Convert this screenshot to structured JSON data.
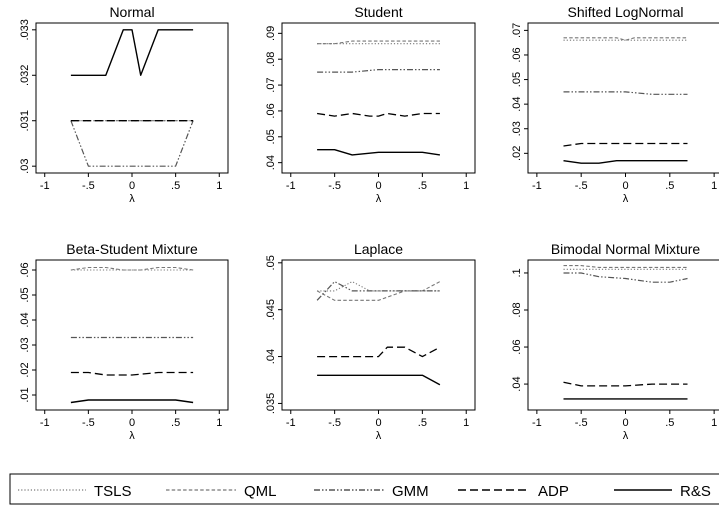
{
  "chart_data": [
    {
      "type": "line",
      "title": "Normal",
      "xlabel": "λ",
      "xlim": [
        -1.1,
        1.1
      ],
      "ylim": [
        0.02985,
        0.03315
      ],
      "xticks": [
        -1,
        -0.5,
        0,
        0.5,
        1
      ],
      "xtick_labels": [
        "-1",
        "-.5",
        "0",
        ".5",
        "1"
      ],
      "yticks": [
        0.03,
        0.031,
        0.032,
        0.033
      ],
      "ytick_labels": [
        ".03",
        ".031",
        ".032",
        ".033"
      ],
      "series": [
        {
          "name": "TSLS",
          "x": [
            -0.7,
            -0.3,
            -0.1,
            0,
            0.1,
            0.3,
            0.5,
            0.7
          ],
          "y": [
            0.031,
            0.031,
            0.031,
            0.031,
            0.031,
            0.031,
            0.031,
            0.031
          ]
        },
        {
          "name": "QML",
          "x": [
            -0.7,
            -0.3,
            -0.1,
            0,
            0.1,
            0.3,
            0.5,
            0.7
          ],
          "y": [
            0.031,
            0.031,
            0.031,
            0.031,
            0.031,
            0.031,
            0.031,
            0.031
          ]
        },
        {
          "name": "GMM",
          "x": [
            -0.7,
            -0.5,
            -0.3,
            0,
            0.3,
            0.5,
            0.7
          ],
          "y": [
            0.031,
            0.03,
            0.03,
            0.03,
            0.03,
            0.03,
            0.031
          ]
        },
        {
          "name": "ADP",
          "x": [
            -0.7,
            -0.3,
            -0.1,
            0,
            0.1,
            0.3,
            0.5,
            0.7
          ],
          "y": [
            0.031,
            0.031,
            0.031,
            0.031,
            0.031,
            0.031,
            0.031,
            0.031
          ]
        },
        {
          "name": "R&S",
          "x": [
            -0.7,
            -0.3,
            -0.1,
            0,
            0.1,
            0.3,
            0.5,
            0.7
          ],
          "y": [
            0.032,
            0.032,
            0.033,
            0.033,
            0.032,
            0.033,
            0.033,
            0.033
          ]
        }
      ]
    },
    {
      "type": "line",
      "title": "Student",
      "xlabel": "λ",
      "xlim": [
        -1.1,
        1.1
      ],
      "ylim": [
        0.036,
        0.094
      ],
      "xticks": [
        -1,
        -0.5,
        0,
        0.5,
        1
      ],
      "xtick_labels": [
        "-1",
        "-.5",
        "0",
        ".5",
        "1"
      ],
      "yticks": [
        0.04,
        0.05,
        0.06,
        0.07,
        0.08,
        0.09
      ],
      "ytick_labels": [
        ".04",
        ".05",
        ".06",
        ".07",
        ".08",
        ".09"
      ],
      "series": [
        {
          "name": "TSLS",
          "x": [
            -0.7,
            -0.5,
            -0.3,
            0,
            0.3,
            0.5,
            0.7
          ],
          "y": [
            0.086,
            0.086,
            0.086,
            0.086,
            0.086,
            0.086,
            0.086
          ]
        },
        {
          "name": "QML",
          "x": [
            -0.7,
            -0.5,
            -0.3,
            0,
            0.3,
            0.5,
            0.7
          ],
          "y": [
            0.086,
            0.086,
            0.087,
            0.087,
            0.087,
            0.087,
            0.087
          ]
        },
        {
          "name": "GMM",
          "x": [
            -0.7,
            -0.5,
            -0.3,
            0,
            0.3,
            0.5,
            0.7
          ],
          "y": [
            0.075,
            0.075,
            0.075,
            0.076,
            0.076,
            0.076,
            0.076
          ]
        },
        {
          "name": "ADP",
          "x": [
            -0.7,
            -0.5,
            -0.3,
            -0.1,
            0,
            0.1,
            0.3,
            0.5,
            0.7
          ],
          "y": [
            0.059,
            0.058,
            0.059,
            0.058,
            0.058,
            0.059,
            0.058,
            0.059,
            0.059
          ]
        },
        {
          "name": "R&S",
          "x": [
            -0.7,
            -0.5,
            -0.3,
            0,
            0.3,
            0.5,
            0.7
          ],
          "y": [
            0.045,
            0.045,
            0.043,
            0.044,
            0.044,
            0.044,
            0.043
          ]
        }
      ]
    },
    {
      "type": "line",
      "title": "Shifted LogNormal",
      "xlabel": "λ",
      "xlim": [
        -1.1,
        1.1
      ],
      "ylim": [
        0.012,
        0.073
      ],
      "xticks": [
        -1,
        -0.5,
        0,
        0.5,
        1
      ],
      "xtick_labels": [
        "-1",
        "-.5",
        "0",
        ".5",
        "1"
      ],
      "yticks": [
        0.02,
        0.03,
        0.04,
        0.05,
        0.06,
        0.07
      ],
      "ytick_labels": [
        ".02",
        ".03",
        ".04",
        ".05",
        ".06",
        ".07"
      ],
      "series": [
        {
          "name": "TSLS",
          "x": [
            -0.7,
            -0.5,
            -0.3,
            0,
            0.3,
            0.5,
            0.7
          ],
          "y": [
            0.066,
            0.066,
            0.066,
            0.066,
            0.066,
            0.066,
            0.066
          ]
        },
        {
          "name": "QML",
          "x": [
            -0.7,
            -0.5,
            -0.3,
            -0.1,
            0,
            0.1,
            0.3,
            0.5,
            0.7
          ],
          "y": [
            0.067,
            0.067,
            0.067,
            0.067,
            0.066,
            0.067,
            0.067,
            0.067,
            0.067
          ]
        },
        {
          "name": "GMM",
          "x": [
            -0.7,
            -0.5,
            -0.3,
            0,
            0.3,
            0.5,
            0.7
          ],
          "y": [
            0.045,
            0.045,
            0.045,
            0.045,
            0.044,
            0.044,
            0.044
          ]
        },
        {
          "name": "ADP",
          "x": [
            -0.7,
            -0.5,
            -0.3,
            0,
            0.3,
            0.5,
            0.7
          ],
          "y": [
            0.023,
            0.024,
            0.024,
            0.024,
            0.024,
            0.024,
            0.024
          ]
        },
        {
          "name": "R&S",
          "x": [
            -0.7,
            -0.5,
            -0.3,
            -0.1,
            0,
            0.3,
            0.5,
            0.7
          ],
          "y": [
            0.017,
            0.016,
            0.016,
            0.017,
            0.017,
            0.017,
            0.017,
            0.017
          ]
        }
      ]
    },
    {
      "type": "line",
      "title": "Beta-Student Mixture",
      "xlabel": "λ",
      "xlim": [
        -1.1,
        1.1
      ],
      "ylim": [
        0.004,
        0.064
      ],
      "xticks": [
        -1,
        -0.5,
        0,
        0.5,
        1
      ],
      "xtick_labels": [
        "-1",
        "-.5",
        "0",
        ".5",
        "1"
      ],
      "yticks": [
        0.01,
        0.02,
        0.03,
        0.04,
        0.05,
        0.06
      ],
      "ytick_labels": [
        ".01",
        ".02",
        ".03",
        ".04",
        ".05",
        ".06"
      ],
      "series": [
        {
          "name": "TSLS",
          "x": [
            -0.7,
            -0.5,
            -0.3,
            0,
            0.3,
            0.5,
            0.7
          ],
          "y": [
            0.06,
            0.06,
            0.06,
            0.06,
            0.06,
            0.06,
            0.06
          ]
        },
        {
          "name": "QML",
          "x": [
            -0.7,
            -0.5,
            -0.3,
            -0.1,
            0,
            0.1,
            0.3,
            0.5,
            0.7
          ],
          "y": [
            0.06,
            0.061,
            0.061,
            0.06,
            0.06,
            0.06,
            0.061,
            0.061,
            0.06
          ]
        },
        {
          "name": "GMM",
          "x": [
            -0.7,
            -0.5,
            -0.3,
            0,
            0.3,
            0.5,
            0.7
          ],
          "y": [
            0.033,
            0.033,
            0.033,
            0.033,
            0.033,
            0.033,
            0.033
          ]
        },
        {
          "name": "ADP",
          "x": [
            -0.7,
            -0.5,
            -0.3,
            0,
            0.3,
            0.5,
            0.7
          ],
          "y": [
            0.019,
            0.019,
            0.018,
            0.018,
            0.019,
            0.019,
            0.019
          ]
        },
        {
          "name": "R&S",
          "x": [
            -0.7,
            -0.5,
            -0.3,
            0,
            0.3,
            0.5,
            0.7
          ],
          "y": [
            0.007,
            0.008,
            0.008,
            0.008,
            0.008,
            0.008,
            0.007
          ]
        }
      ]
    },
    {
      "type": "line",
      "title": "Laplace",
      "xlabel": "λ",
      "xlim": [
        -1.1,
        1.1
      ],
      "ylim": [
        0.0343,
        0.0503
      ],
      "xticks": [
        -1,
        -0.5,
        0,
        0.5,
        1
      ],
      "xtick_labels": [
        "-1",
        "-.5",
        "0",
        ".5",
        "1"
      ],
      "yticks": [
        0.035,
        0.04,
        0.045,
        0.05
      ],
      "ytick_labels": [
        ".035",
        ".04",
        ".045",
        ".05"
      ],
      "series": [
        {
          "name": "TSLS",
          "x": [
            -0.7,
            -0.5,
            -0.3,
            -0.1,
            0,
            0.3,
            0.5,
            0.7
          ],
          "y": [
            0.047,
            0.047,
            0.048,
            0.047,
            0.047,
            0.047,
            0.047,
            0.047
          ]
        },
        {
          "name": "QML",
          "x": [
            -0.7,
            -0.5,
            -0.3,
            0,
            0.3,
            0.5,
            0.7
          ],
          "y": [
            0.047,
            0.046,
            0.046,
            0.046,
            0.047,
            0.047,
            0.048
          ]
        },
        {
          "name": "GMM",
          "x": [
            -0.7,
            -0.5,
            -0.3,
            0,
            0.3,
            0.5,
            0.7
          ],
          "y": [
            0.046,
            0.048,
            0.047,
            0.047,
            0.047,
            0.047,
            0.047
          ]
        },
        {
          "name": "ADP",
          "x": [
            -0.7,
            -0.5,
            -0.3,
            0,
            0.1,
            0.3,
            0.5,
            0.7
          ],
          "y": [
            0.04,
            0.04,
            0.04,
            0.04,
            0.041,
            0.041,
            0.04,
            0.041
          ]
        },
        {
          "name": "R&S",
          "x": [
            -0.7,
            -0.5,
            -0.3,
            0,
            0.3,
            0.5,
            0.7
          ],
          "y": [
            0.038,
            0.038,
            0.038,
            0.038,
            0.038,
            0.038,
            0.037
          ]
        }
      ]
    },
    {
      "type": "line",
      "title": "Bimodal Normal Mixture",
      "xlabel": "λ",
      "xlim": [
        -1.1,
        1.1
      ],
      "ylim": [
        0.026,
        0.107
      ],
      "xticks": [
        -1,
        -0.5,
        0,
        0.5,
        1
      ],
      "xtick_labels": [
        "-1",
        "-.5",
        "0",
        ".5",
        "1"
      ],
      "yticks": [
        0.04,
        0.06,
        0.08,
        0.1
      ],
      "ytick_labels": [
        ".04",
        ".06",
        ".08",
        ".1"
      ],
      "series": [
        {
          "name": "TSLS",
          "x": [
            -0.7,
            -0.5,
            -0.3,
            0,
            0.3,
            0.5,
            0.7
          ],
          "y": [
            0.102,
            0.102,
            0.102,
            0.102,
            0.102,
            0.102,
            0.102
          ]
        },
        {
          "name": "QML",
          "x": [
            -0.7,
            -0.5,
            -0.3,
            0,
            0.3,
            0.5,
            0.7
          ],
          "y": [
            0.104,
            0.104,
            0.103,
            0.103,
            0.103,
            0.103,
            0.103
          ]
        },
        {
          "name": "GMM",
          "x": [
            -0.7,
            -0.5,
            -0.3,
            0,
            0.3,
            0.5,
            0.7
          ],
          "y": [
            0.1,
            0.1,
            0.098,
            0.097,
            0.095,
            0.095,
            0.097
          ]
        },
        {
          "name": "ADP",
          "x": [
            -0.7,
            -0.5,
            -0.3,
            0,
            0.3,
            0.5,
            0.7
          ],
          "y": [
            0.041,
            0.039,
            0.039,
            0.039,
            0.04,
            0.04,
            0.04
          ]
        },
        {
          "name": "R&S",
          "x": [
            -0.7,
            -0.5,
            -0.3,
            0,
            0.3,
            0.5,
            0.7
          ],
          "y": [
            0.032,
            0.032,
            0.032,
            0.032,
            0.032,
            0.032,
            0.032
          ]
        }
      ]
    }
  ],
  "legend": {
    "placement": "bottom",
    "items": [
      {
        "label": "TSLS",
        "style": "dotted"
      },
      {
        "label": "QML",
        "style": "short-dash"
      },
      {
        "label": "GMM",
        "style": "dash-dot-dot"
      },
      {
        "label": "ADP",
        "style": "long-dash"
      },
      {
        "label": "R&S",
        "style": "solid"
      }
    ]
  }
}
